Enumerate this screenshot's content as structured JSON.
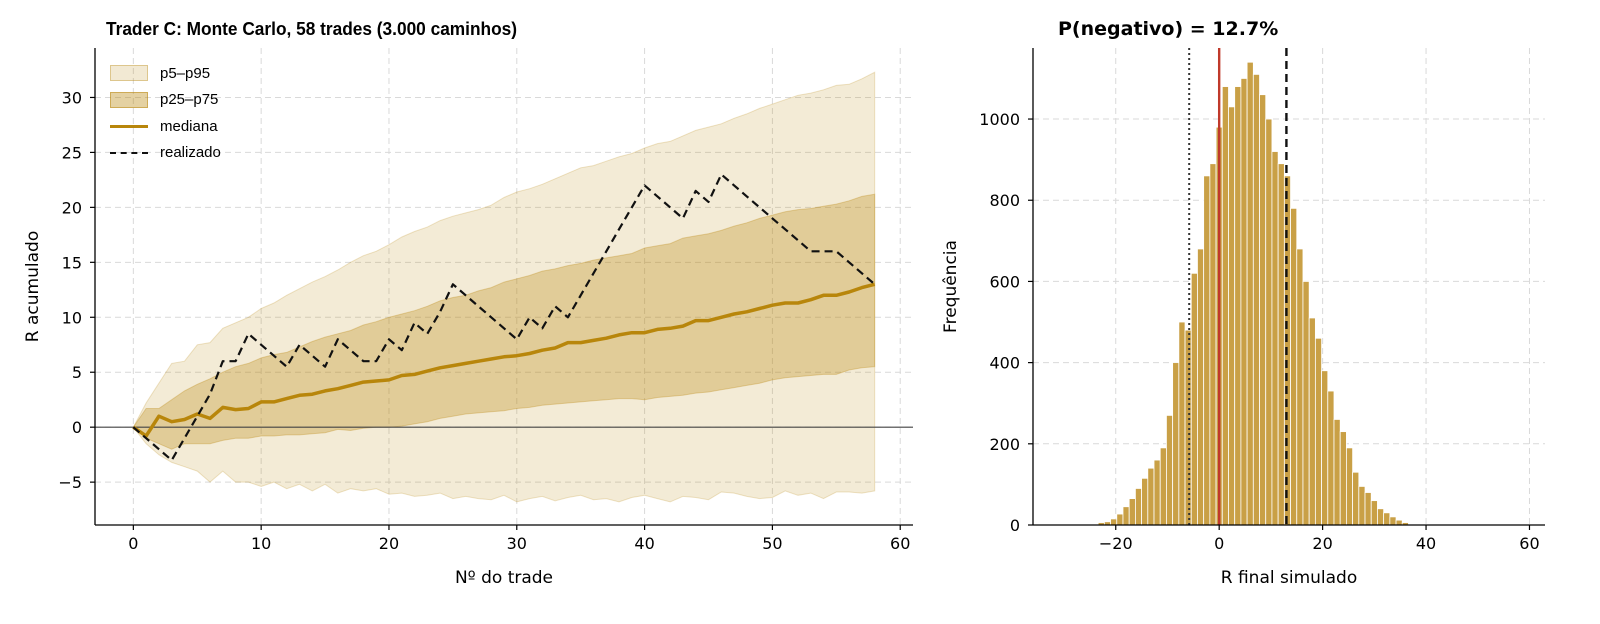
{
  "left_title": "Trader C: Monte Carlo, 58 trades (3.000 caminhos)",
  "right_title": "P(negativo) = 12.7%",
  "legend": {
    "band_outer": "p5–p95",
    "band_inner": "p25–p75",
    "median": "mediana",
    "realized": "realizado"
  },
  "colors": {
    "gold": "#b8860b",
    "bar": "#c9a046",
    "zero_line": "#c0392b",
    "dashed": "#111111"
  },
  "chart_data": [
    {
      "type": "area",
      "title": "Trader C: Monte Carlo, 58 trades (3.000 caminhos)",
      "xlabel": "Nº do trade",
      "ylabel": "R acumulado",
      "xlim": [
        -3,
        61
      ],
      "ylim": [
        -8.9,
        34.5
      ],
      "xticks": [
        0,
        10,
        20,
        30,
        40,
        50,
        60
      ],
      "yticks": [
        -5,
        0,
        5,
        10,
        15,
        20,
        25,
        30
      ],
      "grid": true,
      "legend_position": "top-left",
      "x": [
        0,
        1,
        2,
        3,
        4,
        5,
        6,
        7,
        8,
        9,
        10,
        11,
        12,
        13,
        14,
        15,
        16,
        17,
        18,
        19,
        20,
        21,
        22,
        23,
        24,
        25,
        26,
        27,
        28,
        29,
        30,
        31,
        32,
        33,
        34,
        35,
        36,
        37,
        38,
        39,
        40,
        41,
        42,
        43,
        44,
        45,
        46,
        47,
        48,
        49,
        50,
        51,
        52,
        53,
        54,
        55,
        56,
        57,
        58
      ],
      "series": [
        {
          "name": "p5–p95",
          "kind": "band",
          "lower": [
            0,
            -1.5,
            -2.5,
            -3.2,
            -3.6,
            -4.0,
            -5.0,
            -4.0,
            -5.0,
            -5.0,
            -5.4,
            -5.0,
            -5.6,
            -5.2,
            -5.8,
            -5.2,
            -6.0,
            -5.6,
            -5.8,
            -5.6,
            -6.1,
            -6.0,
            -6.3,
            -6.2,
            -6.0,
            -6.5,
            -6.3,
            -6.5,
            -6.6,
            -6.2,
            -6.8,
            -6.5,
            -6.3,
            -6.7,
            -6.4,
            -6.2,
            -6.6,
            -6.5,
            -6.8,
            -6.4,
            -6.2,
            -6.5,
            -6.8,
            -6.3,
            -6.4,
            -6.6,
            -5.9,
            -6.0,
            -6.3,
            -6.5,
            -6.4,
            -5.8,
            -6.2,
            -6.0,
            -6.5,
            -5.9,
            -5.9,
            -6.0,
            -5.8
          ],
          "upper": [
            0,
            2.2,
            4.0,
            5.8,
            6.0,
            7.5,
            7.7,
            9.0,
            9.5,
            10.0,
            10.8,
            11.3,
            12.0,
            12.6,
            13.2,
            13.7,
            14.3,
            15.0,
            15.6,
            16.0,
            16.6,
            17.3,
            17.8,
            18.2,
            18.8,
            19.2,
            19.5,
            19.8,
            20.2,
            20.9,
            21.4,
            21.7,
            22.1,
            22.6,
            23.1,
            23.6,
            23.8,
            24.2,
            24.6,
            24.9,
            25.4,
            25.8,
            26.0,
            26.5,
            27.0,
            27.3,
            27.6,
            28.1,
            28.5,
            29.0,
            29.4,
            29.8,
            30.2,
            30.4,
            30.7,
            31.1,
            31.2,
            31.7,
            32.3
          ]
        },
        {
          "name": "p25–p75",
          "kind": "band",
          "lower": [
            0,
            -1.0,
            -1.5,
            -2.0,
            -1.5,
            -1.5,
            -1.5,
            -1.2,
            -1.0,
            -1.0,
            -0.8,
            -0.8,
            -0.7,
            -0.7,
            -0.6,
            -0.5,
            -0.2,
            -0.3,
            -0.1,
            0,
            0,
            0.1,
            0.3,
            0.5,
            0.8,
            1.0,
            1.2,
            1.3,
            1.4,
            1.5,
            1.7,
            1.8,
            2.0,
            2.1,
            2.2,
            2.3,
            2.4,
            2.5,
            2.6,
            2.6,
            2.5,
            2.7,
            2.8,
            2.9,
            3.1,
            3.2,
            3.4,
            3.6,
            3.8,
            4.0,
            4.3,
            4.5,
            4.6,
            4.7,
            4.8,
            4.8,
            5.2,
            5.4,
            5.5
          ],
          "upper": [
            0,
            1.7,
            1.7,
            2.5,
            3.3,
            3.9,
            4.4,
            5.0,
            5.5,
            5.8,
            6.3,
            6.6,
            6.8,
            7.3,
            7.8,
            8.2,
            8.5,
            8.8,
            9.3,
            9.6,
            10.0,
            10.3,
            10.6,
            11.0,
            11.5,
            11.8,
            12.0,
            12.4,
            12.7,
            13.2,
            13.5,
            13.8,
            14.2,
            14.4,
            14.7,
            14.9,
            15.2,
            15.4,
            15.6,
            15.8,
            16.3,
            16.5,
            16.7,
            17.2,
            17.4,
            17.6,
            17.9,
            18.3,
            18.6,
            19.0,
            19.3,
            19.6,
            19.8,
            19.9,
            20.1,
            20.3,
            20.6,
            21.0,
            21.2
          ]
        },
        {
          "name": "mediana",
          "kind": "line",
          "values": [
            0,
            -0.8,
            1.0,
            0.5,
            0.7,
            1.2,
            0.8,
            1.8,
            1.6,
            1.7,
            2.3,
            2.3,
            2.6,
            2.9,
            3.0,
            3.3,
            3.5,
            3.8,
            4.1,
            4.2,
            4.3,
            4.7,
            4.8,
            5.1,
            5.4,
            5.6,
            5.8,
            6.0,
            6.2,
            6.4,
            6.5,
            6.7,
            7.0,
            7.2,
            7.7,
            7.7,
            7.9,
            8.1,
            8.4,
            8.6,
            8.6,
            8.9,
            9.0,
            9.2,
            9.7,
            9.7,
            10.0,
            10.3,
            10.5,
            10.8,
            11.1,
            11.3,
            11.3,
            11.6,
            12.0,
            12.0,
            12.3,
            12.7,
            13.0
          ]
        },
        {
          "name": "realizado",
          "kind": "line",
          "values": [
            0,
            -1,
            -2,
            -3,
            -1,
            1,
            3,
            6,
            6,
            8.5,
            7.5,
            6.5,
            5.5,
            7.5,
            6.5,
            5.5,
            8,
            7,
            6,
            6,
            8,
            7,
            9.5,
            8.5,
            10.5,
            13,
            12,
            11,
            10,
            9,
            8,
            10,
            9,
            11,
            10,
            12,
            14,
            16,
            18,
            20,
            22,
            21,
            20,
            19,
            21.5,
            20.5,
            23,
            22,
            21,
            20,
            19,
            18,
            17,
            16,
            16,
            16,
            15,
            14,
            13
          ]
        }
      ]
    },
    {
      "type": "bar",
      "title": "P(negativo) = 12.7%",
      "xlabel": "R final simulado",
      "ylabel": "Frequência",
      "xlim": [
        -36,
        63
      ],
      "ylim": [
        0,
        1175
      ],
      "xticks": [
        -20,
        0,
        20,
        40,
        60
      ],
      "yticks": [
        0,
        200,
        400,
        600,
        800,
        1000
      ],
      "grid": true,
      "bin_width": 1.2,
      "bin_start": -23.4,
      "values": [
        6,
        8,
        15,
        27,
        45,
        65,
        90,
        115,
        140,
        160,
        190,
        270,
        400,
        500,
        480,
        620,
        680,
        860,
        890,
        980,
        1080,
        1030,
        1080,
        1100,
        1140,
        1110,
        1060,
        1000,
        920,
        890,
        860,
        780,
        680,
        600,
        510,
        460,
        380,
        330,
        260,
        230,
        190,
        130,
        95,
        80,
        60,
        40,
        30,
        20,
        12,
        6
      ],
      "vlines": [
        {
          "x": 0,
          "style": "solid",
          "color": "#c0392b"
        },
        {
          "x": 13.0,
          "style": "dashed",
          "color": "#111111"
        },
        {
          "x": -5.8,
          "style": "dotted",
          "color": "#333333"
        }
      ]
    }
  ]
}
